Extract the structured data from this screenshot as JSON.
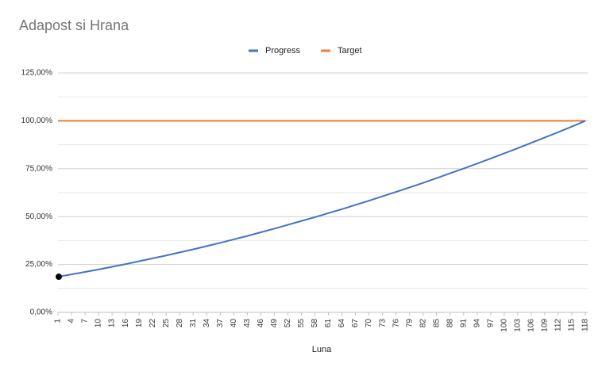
{
  "chart_data": {
    "type": "line",
    "title": "Adapost si Hrana",
    "x_label": "Luna",
    "categories": [
      "1",
      "4",
      "7",
      "10",
      "13",
      "16",
      "19",
      "22",
      "25",
      "28",
      "31",
      "34",
      "37",
      "40",
      "43",
      "46",
      "49",
      "52",
      "55",
      "58",
      "61",
      "64",
      "67",
      "70",
      "73",
      "76",
      "79",
      "82",
      "85",
      "88",
      "91",
      "94",
      "97",
      "100",
      "103",
      "106",
      "109",
      "112",
      "115",
      "118"
    ],
    "series": [
      {
        "name": "Progress",
        "color": "#4472c4",
        "values": [
          18.6,
          19.8,
          21.1,
          22.4,
          23.8,
          25.2,
          26.7,
          28.2,
          29.7,
          31.3,
          32.9,
          34.6,
          36.3,
          38.1,
          39.9,
          41.8,
          43.7,
          45.7,
          47.7,
          49.7,
          51.8,
          53.9,
          56.1,
          58.3,
          60.6,
          62.9,
          65.2,
          67.6,
          70.1,
          72.6,
          75.1,
          77.7,
          80.3,
          83.0,
          85.7,
          88.5,
          91.3,
          94.1,
          97.0,
          100
        ]
      },
      {
        "name": "Target",
        "color": "#ed7d31",
        "values": [
          100,
          100,
          100,
          100,
          100,
          100,
          100,
          100,
          100,
          100,
          100,
          100,
          100,
          100,
          100,
          100,
          100,
          100,
          100,
          100,
          100,
          100,
          100,
          100,
          100,
          100,
          100,
          100,
          100,
          100,
          100,
          100,
          100,
          100,
          100,
          100,
          100,
          100,
          100,
          100
        ]
      }
    ],
    "ylim": [
      0,
      125
    ],
    "yticks": [
      {
        "value": 0,
        "label": "0,00%"
      },
      {
        "value": 25,
        "label": "25,00%"
      },
      {
        "value": 50,
        "label": "50,00%"
      },
      {
        "value": 75,
        "label": "75,00%"
      },
      {
        "value": 100,
        "label": "100,00%"
      },
      {
        "value": 125,
        "label": "125,00%"
      }
    ],
    "yminor": [
      12.5,
      37.5,
      62.5,
      87.5,
      112.5
    ],
    "grid": true,
    "legend": "top"
  }
}
